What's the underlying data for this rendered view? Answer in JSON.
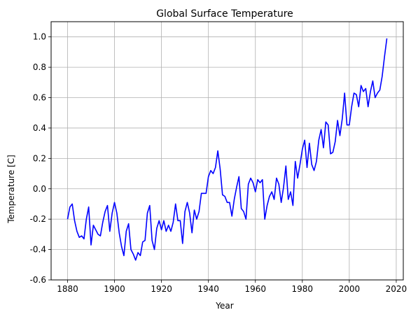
{
  "chart_data": {
    "type": "line",
    "title": "Global Surface Temperature",
    "xlabel": "Year",
    "ylabel": "Temperature [C]",
    "xlim": [
      1873,
      2023
    ],
    "ylim": [
      -0.6,
      1.1
    ],
    "xticks": [
      1880,
      1900,
      1920,
      1940,
      1960,
      1980,
      2000,
      2020
    ],
    "yticks": [
      -0.6,
      -0.4,
      -0.2,
      0.0,
      0.2,
      0.4,
      0.6,
      0.8,
      1.0
    ],
    "grid": true,
    "series": [
      {
        "color": "#0000ff",
        "x": [
          1880,
          1881,
          1882,
          1883,
          1884,
          1885,
          1886,
          1887,
          1888,
          1889,
          1890,
          1891,
          1892,
          1893,
          1894,
          1895,
          1896,
          1897,
          1898,
          1899,
          1900,
          1901,
          1902,
          1903,
          1904,
          1905,
          1906,
          1907,
          1908,
          1909,
          1910,
          1911,
          1912,
          1913,
          1914,
          1915,
          1916,
          1917,
          1918,
          1919,
          1920,
          1921,
          1922,
          1923,
          1924,
          1925,
          1926,
          1927,
          1928,
          1929,
          1930,
          1931,
          1932,
          1933,
          1934,
          1935,
          1936,
          1937,
          1938,
          1939,
          1940,
          1941,
          1942,
          1943,
          1944,
          1945,
          1946,
          1947,
          1948,
          1949,
          1950,
          1951,
          1952,
          1953,
          1954,
          1955,
          1956,
          1957,
          1958,
          1959,
          1960,
          1961,
          1962,
          1963,
          1964,
          1965,
          1966,
          1967,
          1968,
          1969,
          1970,
          1971,
          1972,
          1973,
          1974,
          1975,
          1976,
          1977,
          1978,
          1979,
          1980,
          1981,
          1982,
          1983,
          1984,
          1985,
          1986,
          1987,
          1988,
          1989,
          1990,
          1991,
          1992,
          1993,
          1994,
          1995,
          1996,
          1997,
          1998,
          1999,
          2000,
          2001,
          2002,
          2003,
          2004,
          2005,
          2006,
          2007,
          2008,
          2009,
          2010,
          2011,
          2012,
          2013,
          2014,
          2015,
          2016
        ],
        "values": [
          -0.2,
          -0.12,
          -0.1,
          -0.21,
          -0.28,
          -0.32,
          -0.31,
          -0.33,
          -0.2,
          -0.12,
          -0.37,
          -0.24,
          -0.27,
          -0.3,
          -0.31,
          -0.22,
          -0.15,
          -0.11,
          -0.28,
          -0.16,
          -0.09,
          -0.16,
          -0.29,
          -0.38,
          -0.44,
          -0.28,
          -0.23,
          -0.4,
          -0.43,
          -0.47,
          -0.42,
          -0.44,
          -0.35,
          -0.34,
          -0.16,
          -0.11,
          -0.34,
          -0.4,
          -0.26,
          -0.21,
          -0.27,
          -0.21,
          -0.28,
          -0.24,
          -0.28,
          -0.22,
          -0.1,
          -0.21,
          -0.21,
          -0.36,
          -0.15,
          -0.09,
          -0.16,
          -0.29,
          -0.14,
          -0.2,
          -0.15,
          -0.03,
          -0.03,
          -0.03,
          0.08,
          0.12,
          0.1,
          0.14,
          0.25,
          0.13,
          -0.04,
          -0.05,
          -0.09,
          -0.09,
          -0.18,
          -0.07,
          0.01,
          0.08,
          -0.13,
          -0.15,
          -0.2,
          0.03,
          0.07,
          0.04,
          -0.02,
          0.06,
          0.04,
          0.06,
          -0.2,
          -0.11,
          -0.05,
          -0.02,
          -0.07,
          0.07,
          0.03,
          -0.09,
          0.01,
          0.15,
          -0.07,
          -0.02,
          -0.11,
          0.18,
          0.07,
          0.16,
          0.26,
          0.32,
          0.14,
          0.3,
          0.16,
          0.12,
          0.18,
          0.32,
          0.39,
          0.27,
          0.44,
          0.42,
          0.23,
          0.24,
          0.31,
          0.45,
          0.35,
          0.46,
          0.63,
          0.42,
          0.42,
          0.54,
          0.63,
          0.62,
          0.54,
          0.68,
          0.64,
          0.66,
          0.54,
          0.64,
          0.71,
          0.6,
          0.63,
          0.65,
          0.74,
          0.87,
          0.99
        ]
      }
    ]
  }
}
